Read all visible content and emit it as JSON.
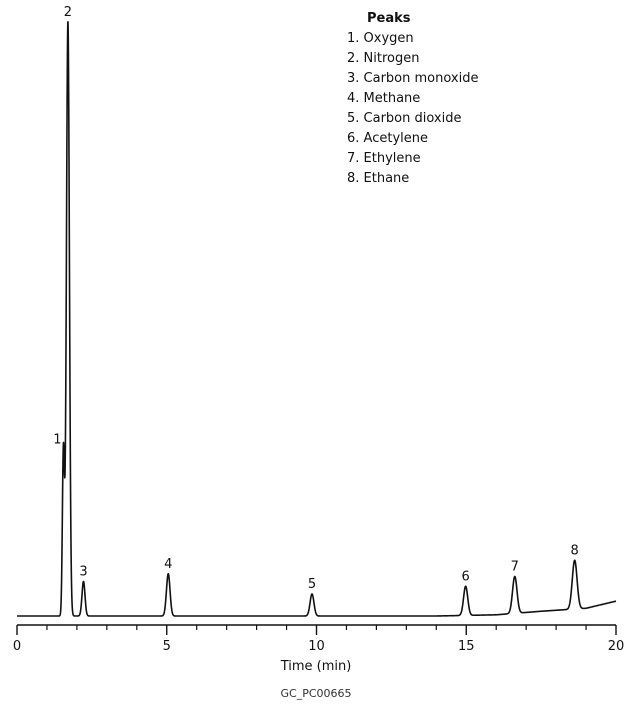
{
  "chart_data": {
    "type": "line",
    "xlabel": "Time (min)",
    "ylabel": "",
    "xlim": [
      0,
      20
    ],
    "ylim": [
      0,
      100
    ],
    "x_ticks": [
      "0",
      "5",
      "10",
      "15",
      "20"
    ],
    "grid": false,
    "legend": {
      "title": "Peaks",
      "placement": "top-right",
      "items": [
        "1. Oxygen",
        "2. Nitrogen",
        "3. Carbon monoxide",
        "4. Methane",
        "5. Carbon dioxide",
        "6. Acetylene",
        "7. Ethylene",
        "8. Ethane"
      ]
    },
    "baseline": [
      {
        "x": 0,
        "y": 0.0
      },
      {
        "x": 4,
        "y": 0.0
      },
      {
        "x": 8,
        "y": 0.0
      },
      {
        "x": 12,
        "y": 0.0
      },
      {
        "x": 14,
        "y": 0.0
      },
      {
        "x": 16,
        "y": 0.2
      },
      {
        "x": 17.5,
        "y": 0.8
      },
      {
        "x": 19,
        "y": 1.3
      },
      {
        "x": 20,
        "y": 2.5
      }
    ],
    "peaks": [
      {
        "label": "1",
        "name": "Oxygen",
        "x": 1.55,
        "height": 28.0,
        "width": 0.035
      },
      {
        "label": "2",
        "name": "Nitrogen",
        "x": 1.7,
        "height": 100.0,
        "width": 0.05
      },
      {
        "label": "3",
        "name": "Carbon monoxide",
        "x": 2.22,
        "height": 5.8,
        "width": 0.05
      },
      {
        "label": "4",
        "name": "Methane",
        "x": 5.05,
        "height": 7.1,
        "width": 0.06
      },
      {
        "label": "5",
        "name": "Carbon dioxide",
        "x": 9.85,
        "height": 3.7,
        "width": 0.065
      },
      {
        "label": "6",
        "name": "Acetylene",
        "x": 14.98,
        "height": 4.9,
        "width": 0.07
      },
      {
        "label": "7",
        "name": "Ethylene",
        "x": 16.62,
        "height": 6.2,
        "width": 0.075
      },
      {
        "label": "8",
        "name": "Ethane",
        "x": 18.62,
        "height": 8.2,
        "width": 0.08
      }
    ]
  },
  "footnote": "GC_PC00665"
}
